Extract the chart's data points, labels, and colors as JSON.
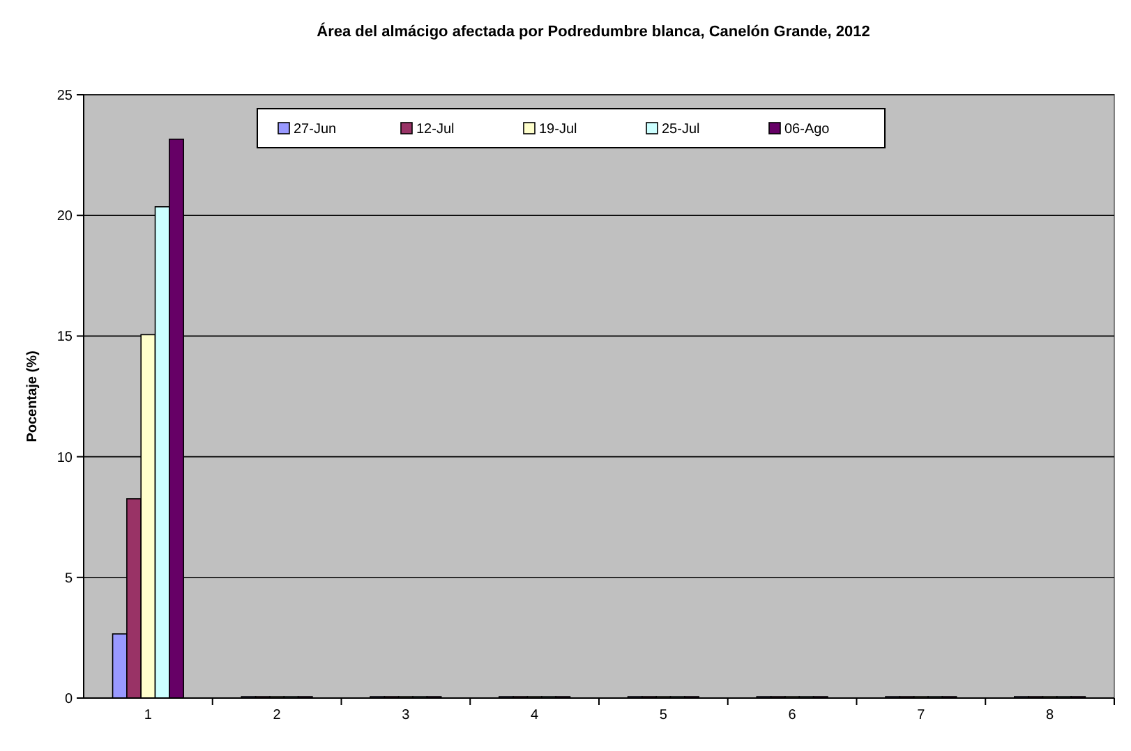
{
  "chart_data": {
    "type": "bar",
    "title": "Área del almácigo afectada por Podredumbre blanca, Canelón Grande, 2012",
    "ylabel": "Pocentaje (%)",
    "categories": [
      "1",
      "2",
      "3",
      "4",
      "5",
      "6",
      "7",
      "8"
    ],
    "series": [
      {
        "name": "27-Jun",
        "color": "#9999ff",
        "values": [
          2.6,
          0,
          0,
          0,
          0,
          0,
          0,
          0
        ]
      },
      {
        "name": "12-Jul",
        "color": "#993366",
        "values": [
          8.2,
          0,
          0,
          0,
          0,
          0,
          0,
          0
        ]
      },
      {
        "name": "19-Jul",
        "color": "#ffffcc",
        "values": [
          15,
          0,
          0,
          0,
          0,
          0,
          0,
          0
        ]
      },
      {
        "name": "25-Jul",
        "color": "#ccffff",
        "values": [
          20.3,
          0,
          0,
          0,
          0,
          0,
          0,
          0
        ]
      },
      {
        "name": "06-Ago",
        "color": "#660066",
        "values": [
          23.1,
          0,
          0,
          0,
          0,
          0,
          0,
          0
        ]
      }
    ],
    "ylim": [
      0,
      25
    ],
    "yticks": [
      0,
      5,
      10,
      15,
      20,
      25
    ],
    "grid": "y",
    "legend": "top"
  }
}
